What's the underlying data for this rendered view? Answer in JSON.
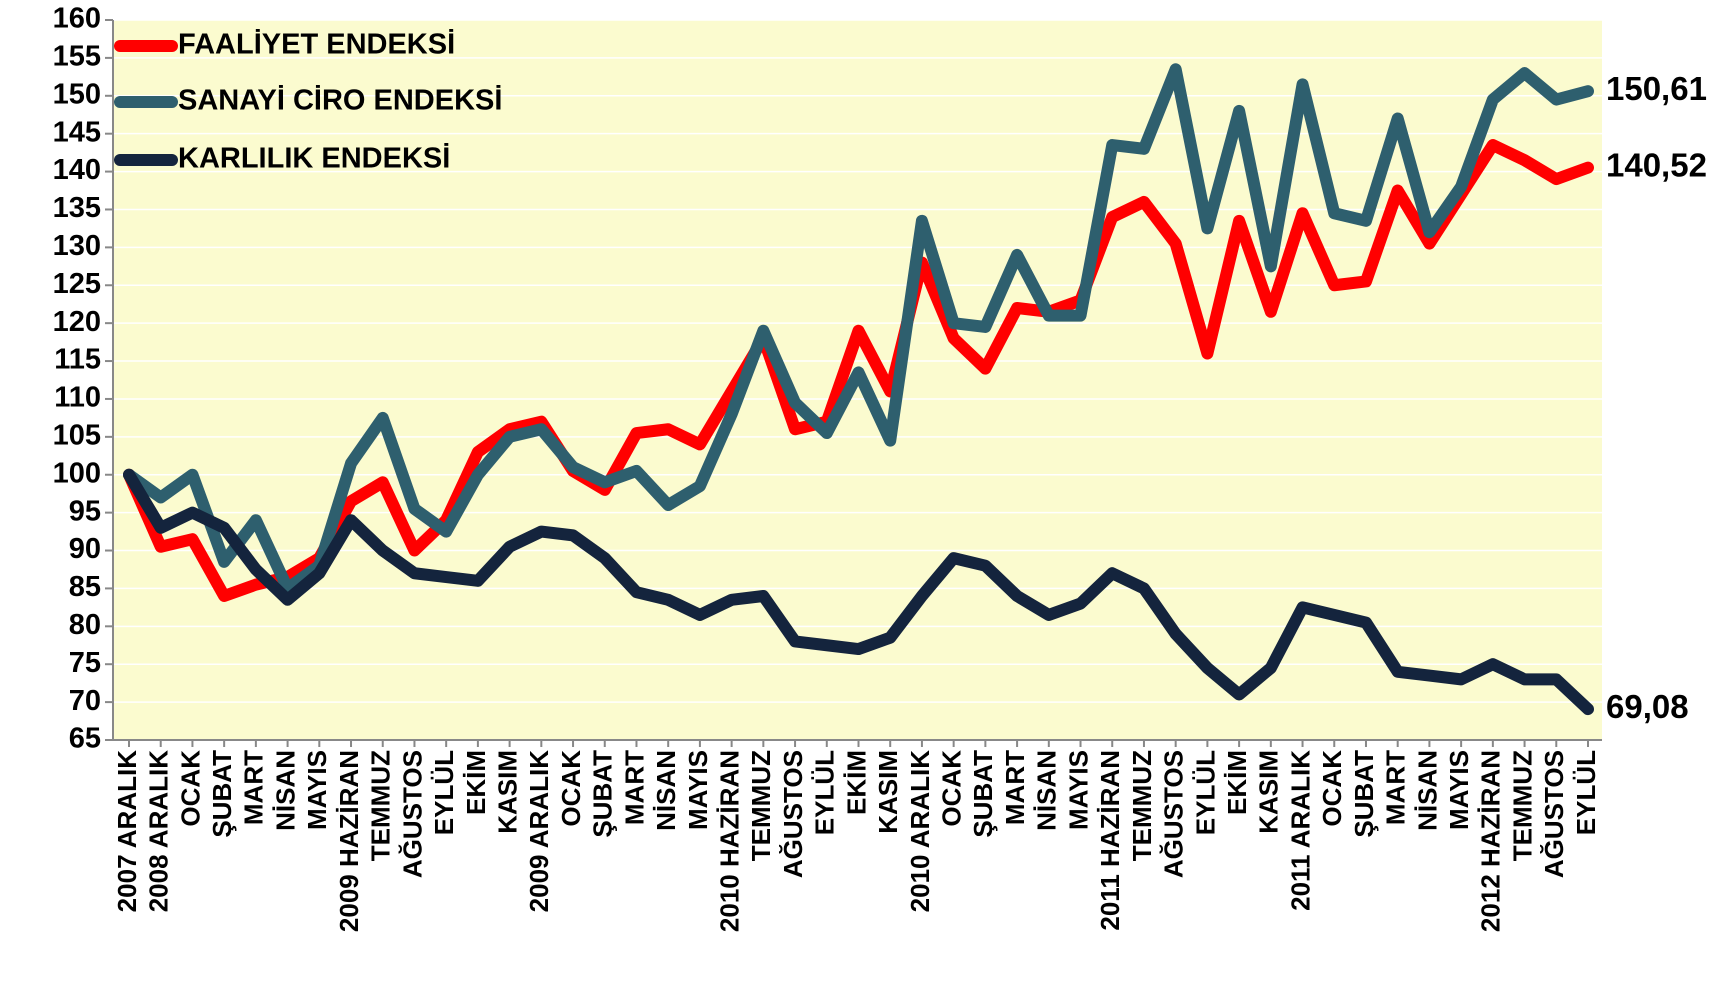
{
  "chart_data": {
    "type": "line",
    "categories": [
      "2007 ARALIK",
      "2008 ARALIK",
      "OCAK",
      "ŞUBAT",
      "MART",
      "NİSAN",
      "MAYIS",
      "2009 HAZİRAN",
      "TEMMUZ",
      "AĞUSTOS",
      "EYLÜL",
      "EKİM",
      "KASIM",
      "2009 ARALIK",
      "OCAK",
      "ŞUBAT",
      "MART",
      "NİSAN",
      "MAYIS",
      "2010 HAZİRAN",
      "TEMMUZ",
      "AĞUSTOS",
      "EYLÜL",
      "EKİM",
      "KASIM",
      "2010 ARALIK",
      "OCAK",
      "ŞUBAT",
      "MART",
      "NİSAN",
      "MAYIS",
      "2011 HAZİRAN",
      "TEMMUZ",
      "AĞUSTOS",
      "EYLÜL",
      "EKİM",
      "KASIM",
      "2011 ARALIK",
      "OCAK",
      "ŞUBAT",
      "MART",
      "NİSAN",
      "MAYIS",
      "2012 HAZİRAN",
      "TEMMUZ",
      "AĞUSTOS",
      "EYLÜL"
    ],
    "series": [
      {
        "name": "FAALİYET ENDEKSİ",
        "color": "#ff0000",
        "values": [
          100,
          90.5,
          91.5,
          84,
          85.5,
          86.5,
          89,
          96.5,
          99,
          90,
          94,
          103,
          106,
          107,
          100.5,
          98,
          105.5,
          106,
          104,
          111,
          118,
          106,
          107,
          119,
          111,
          128,
          118,
          114,
          122,
          121.5,
          123,
          134,
          136,
          130.5,
          116,
          133.5,
          121.5,
          134.5,
          125,
          125.5,
          137.5,
          130.5,
          137,
          143.5,
          141.5,
          139,
          140.52
        ],
        "value_labels": [
          null,
          null,
          null,
          null,
          null,
          null,
          null,
          null,
          null,
          null,
          null,
          null,
          null,
          null,
          null,
          null,
          null,
          null,
          null,
          null,
          null,
          null,
          null,
          null,
          null,
          null,
          null,
          null,
          null,
          null,
          null,
          null,
          null,
          null,
          null,
          null,
          null,
          null,
          null,
          null,
          null,
          null,
          null,
          null,
          null,
          null,
          "140,52"
        ]
      },
      {
        "name": "SANAYİ CİRO ENDEKSİ",
        "color": "#2e5f6e",
        "values": [
          100,
          97,
          100,
          88.5,
          94,
          85,
          88,
          101.5,
          107.5,
          95.5,
          92.5,
          100,
          105,
          106,
          101,
          99,
          100.5,
          96,
          98.5,
          108,
          119,
          109.5,
          105.5,
          113.5,
          104.5,
          133.5,
          120,
          119.5,
          129,
          121,
          121,
          143.5,
          143,
          153.5,
          132.5,
          148,
          127.5,
          151.5,
          134.5,
          133.5,
          147,
          132,
          138,
          149.5,
          153,
          149.5,
          150.61
        ],
        "value_labels": [
          null,
          null,
          null,
          null,
          null,
          null,
          null,
          null,
          null,
          null,
          null,
          null,
          null,
          null,
          null,
          null,
          null,
          null,
          null,
          null,
          null,
          null,
          null,
          null,
          null,
          null,
          null,
          null,
          null,
          null,
          null,
          null,
          null,
          null,
          null,
          null,
          null,
          null,
          null,
          null,
          null,
          null,
          null,
          null,
          null,
          null,
          "150,61"
        ]
      },
      {
        "name": "KARLILIK ENDEKSİ",
        "color": "#14243d",
        "values": [
          100,
          93,
          95,
          93,
          87.5,
          83.5,
          87,
          94,
          90,
          87,
          86.5,
          86,
          90.5,
          92.5,
          92,
          89,
          84.5,
          83.5,
          81.5,
          83.5,
          84,
          78,
          77.5,
          77,
          78.5,
          84,
          89,
          88,
          84,
          81.5,
          83,
          87,
          85,
          79,
          74.5,
          71,
          74.5,
          82.5,
          81.5,
          80.5,
          74,
          73.5,
          73,
          75,
          73,
          73,
          69.08
        ],
        "value_labels": [
          null,
          null,
          null,
          null,
          null,
          null,
          null,
          null,
          null,
          null,
          null,
          null,
          null,
          null,
          null,
          null,
          null,
          null,
          null,
          null,
          null,
          null,
          null,
          null,
          null,
          null,
          null,
          null,
          null,
          null,
          null,
          null,
          null,
          null,
          null,
          null,
          null,
          null,
          null,
          null,
          null,
          null,
          null,
          null,
          null,
          null,
          "69,08"
        ]
      }
    ],
    "ylim": [
      65,
      160
    ],
    "yticks": [
      65,
      70,
      75,
      80,
      85,
      90,
      95,
      100,
      105,
      110,
      115,
      120,
      125,
      130,
      135,
      140,
      145,
      150,
      155,
      160
    ],
    "grid": true,
    "legend": "top-left",
    "plot_background": "#fbfbcf"
  }
}
